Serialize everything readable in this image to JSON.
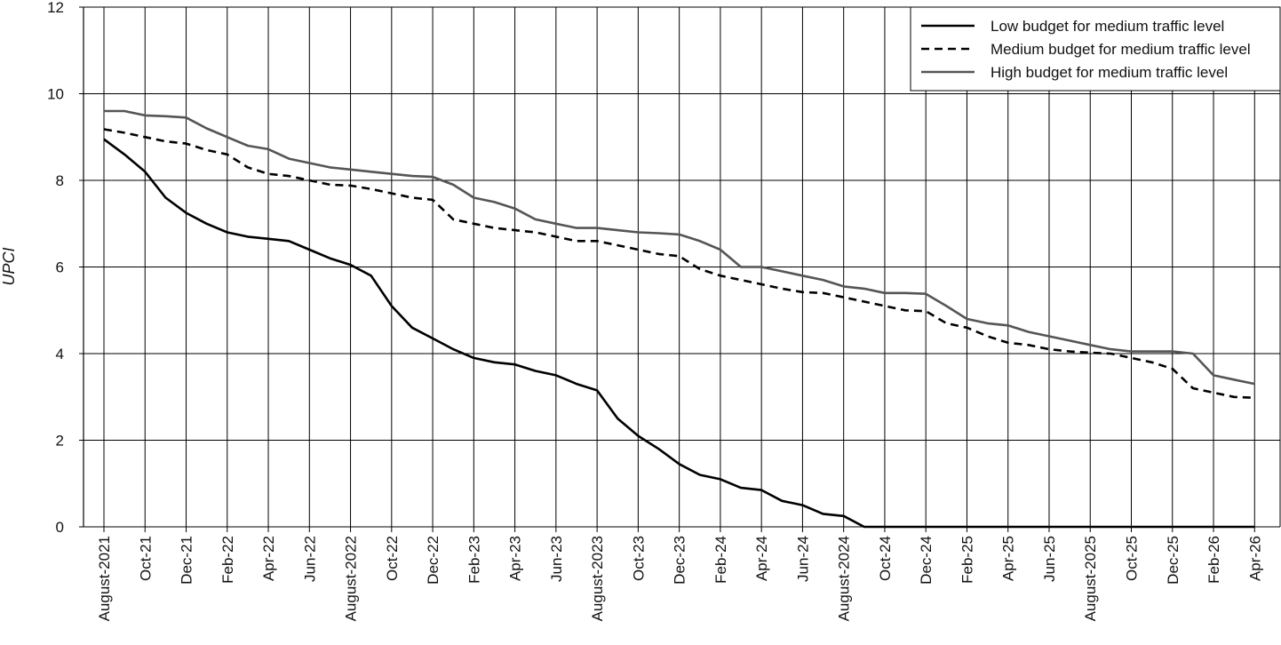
{
  "chart_data": {
    "type": "line",
    "title": "",
    "xlabel": "",
    "ylabel": "UPCI",
    "ylim": [
      0,
      12
    ],
    "yticks": [
      0,
      2,
      4,
      6,
      8,
      10,
      12
    ],
    "grid": true,
    "legend_position": "top-right",
    "x_tick_labels": [
      "August-2021",
      "Oct-21",
      "Dec-21",
      "Feb-22",
      "Apr-22",
      "Jun-22",
      "August-2022",
      "Oct-22",
      "Dec-22",
      "Feb-23",
      "Apr-23",
      "Jun-23",
      "August-2023",
      "Oct-23",
      "Dec-23",
      "Feb-24",
      "Apr-24",
      "Jun-24",
      "August-2024",
      "Oct-24",
      "Dec-24",
      "Feb-25",
      "Apr-25",
      "Jun-25",
      "August-2025",
      "Oct-25",
      "Dec-25",
      "Feb-26",
      "Apr-26"
    ],
    "x_months": [
      0,
      2,
      4,
      6,
      8,
      10,
      12,
      14,
      16,
      18,
      20,
      22,
      24,
      26,
      28,
      30,
      32,
      34,
      36,
      38,
      40,
      42,
      44,
      46,
      48,
      50,
      52,
      54,
      56
    ],
    "series": [
      {
        "name": "Low budget for medium traffic level",
        "color": "#000000",
        "dash": "solid",
        "points": [
          [
            0,
            8.95
          ],
          [
            1,
            8.6
          ],
          [
            2,
            8.2
          ],
          [
            3,
            7.6
          ],
          [
            4,
            7.25
          ],
          [
            5,
            7.0
          ],
          [
            6,
            6.8
          ],
          [
            7,
            6.7
          ],
          [
            8,
            6.65
          ],
          [
            9,
            6.6
          ],
          [
            10,
            6.4
          ],
          [
            11,
            6.2
          ],
          [
            12,
            6.05
          ],
          [
            13,
            5.8
          ],
          [
            14,
            5.1
          ],
          [
            15,
            4.6
          ],
          [
            16,
            4.35
          ],
          [
            17,
            4.1
          ],
          [
            18,
            3.9
          ],
          [
            19,
            3.8
          ],
          [
            20,
            3.75
          ],
          [
            21,
            3.6
          ],
          [
            22,
            3.5
          ],
          [
            23,
            3.3
          ],
          [
            24,
            3.15
          ],
          [
            25,
            2.5
          ],
          [
            26,
            2.1
          ],
          [
            27,
            1.8
          ],
          [
            28,
            1.45
          ],
          [
            29,
            1.2
          ],
          [
            30,
            1.1
          ],
          [
            31,
            0.9
          ],
          [
            32,
            0.85
          ],
          [
            33,
            0.6
          ],
          [
            34,
            0.5
          ],
          [
            35,
            0.3
          ],
          [
            36,
            0.25
          ],
          [
            37,
            0.0
          ],
          [
            38,
            0.0
          ],
          [
            40,
            0.0
          ],
          [
            42,
            0.0
          ],
          [
            44,
            0.0
          ],
          [
            46,
            0.0
          ],
          [
            48,
            0.0
          ],
          [
            50,
            0.0
          ],
          [
            52,
            0.0
          ],
          [
            54,
            0.0
          ],
          [
            56,
            0.0
          ]
        ]
      },
      {
        "name": "Medium budget for medium traffic level",
        "color": "#000000",
        "dash": "dashed",
        "points": [
          [
            0,
            9.18
          ],
          [
            1,
            9.1
          ],
          [
            2,
            9.0
          ],
          [
            3,
            8.9
          ],
          [
            4,
            8.85
          ],
          [
            5,
            8.7
          ],
          [
            6,
            8.6
          ],
          [
            7,
            8.3
          ],
          [
            8,
            8.15
          ],
          [
            9,
            8.1
          ],
          [
            10,
            8.0
          ],
          [
            11,
            7.9
          ],
          [
            12,
            7.88
          ],
          [
            13,
            7.8
          ],
          [
            14,
            7.7
          ],
          [
            15,
            7.6
          ],
          [
            16,
            7.55
          ],
          [
            17,
            7.1
          ],
          [
            18,
            7.0
          ],
          [
            19,
            6.9
          ],
          [
            20,
            6.85
          ],
          [
            21,
            6.8
          ],
          [
            22,
            6.7
          ],
          [
            23,
            6.6
          ],
          [
            24,
            6.6
          ],
          [
            25,
            6.5
          ],
          [
            26,
            6.4
          ],
          [
            27,
            6.3
          ],
          [
            28,
            6.25
          ],
          [
            29,
            5.95
          ],
          [
            30,
            5.8
          ],
          [
            31,
            5.7
          ],
          [
            32,
            5.6
          ],
          [
            33,
            5.5
          ],
          [
            34,
            5.42
          ],
          [
            35,
            5.4
          ],
          [
            36,
            5.3
          ],
          [
            37,
            5.2
          ],
          [
            38,
            5.1
          ],
          [
            39,
            5.0
          ],
          [
            40,
            4.98
          ],
          [
            41,
            4.7
          ],
          [
            42,
            4.6
          ],
          [
            43,
            4.4
          ],
          [
            44,
            4.25
          ],
          [
            45,
            4.2
          ],
          [
            46,
            4.1
          ],
          [
            47,
            4.05
          ],
          [
            48,
            4.02
          ],
          [
            49,
            4.0
          ],
          [
            50,
            3.9
          ],
          [
            51,
            3.8
          ],
          [
            52,
            3.65
          ],
          [
            53,
            3.2
          ],
          [
            54,
            3.1
          ],
          [
            55,
            3.0
          ],
          [
            56,
            2.98
          ]
        ]
      },
      {
        "name": "High budget for medium traffic level",
        "color": "#555555",
        "dash": "solid",
        "points": [
          [
            0,
            9.6
          ],
          [
            1,
            9.6
          ],
          [
            2,
            9.5
          ],
          [
            3,
            9.48
          ],
          [
            4,
            9.45
          ],
          [
            5,
            9.2
          ],
          [
            6,
            9.0
          ],
          [
            7,
            8.8
          ],
          [
            8,
            8.72
          ],
          [
            9,
            8.5
          ],
          [
            10,
            8.4
          ],
          [
            11,
            8.3
          ],
          [
            12,
            8.25
          ],
          [
            13,
            8.2
          ],
          [
            14,
            8.15
          ],
          [
            15,
            8.1
          ],
          [
            16,
            8.08
          ],
          [
            17,
            7.9
          ],
          [
            18,
            7.6
          ],
          [
            19,
            7.5
          ],
          [
            20,
            7.35
          ],
          [
            21,
            7.1
          ],
          [
            22,
            7.0
          ],
          [
            23,
            6.9
          ],
          [
            24,
            6.9
          ],
          [
            25,
            6.85
          ],
          [
            26,
            6.8
          ],
          [
            27,
            6.78
          ],
          [
            28,
            6.75
          ],
          [
            29,
            6.6
          ],
          [
            30,
            6.4
          ],
          [
            31,
            6.0
          ],
          [
            32,
            6.0
          ],
          [
            33,
            5.9
          ],
          [
            34,
            5.8
          ],
          [
            35,
            5.7
          ],
          [
            36,
            5.55
          ],
          [
            37,
            5.5
          ],
          [
            38,
            5.4
          ],
          [
            39,
            5.4
          ],
          [
            40,
            5.38
          ],
          [
            41,
            5.1
          ],
          [
            42,
            4.8
          ],
          [
            43,
            4.7
          ],
          [
            44,
            4.65
          ],
          [
            45,
            4.5
          ],
          [
            46,
            4.4
          ],
          [
            47,
            4.3
          ],
          [
            48,
            4.2
          ],
          [
            49,
            4.1
          ],
          [
            50,
            4.05
          ],
          [
            51,
            4.05
          ],
          [
            52,
            4.05
          ],
          [
            53,
            4.0
          ],
          [
            54,
            3.5
          ],
          [
            55,
            3.4
          ],
          [
            56,
            3.3
          ]
        ]
      }
    ]
  }
}
